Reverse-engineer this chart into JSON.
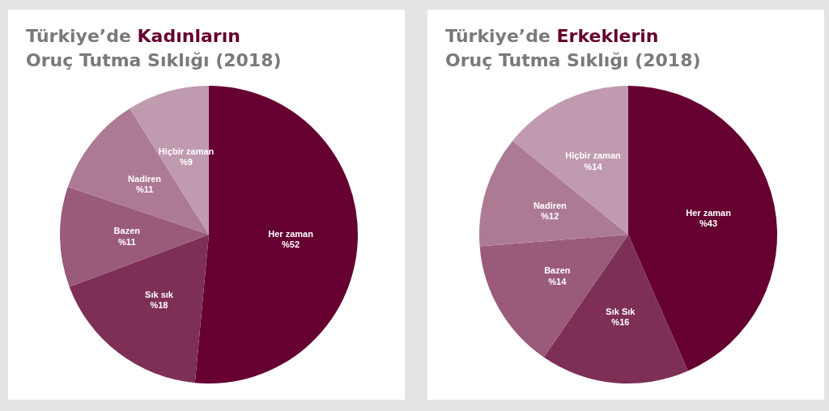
{
  "chart_data": [
    {
      "type": "pie",
      "title": "Türkiye’de Kadınların",
      "subtitle": "Oruç Tutma Sıklığı (2018)",
      "categories": [
        "Her zaman",
        "Sık sık",
        "Bazen",
        "Nadiren",
        "Hiçbir zaman"
      ],
      "values": [
        52,
        18,
        11,
        11,
        9
      ],
      "value_labels": [
        "%52",
        "%18",
        "%11",
        "%11",
        "%9"
      ],
      "colors": [
        "#650030",
        "#7e2f56",
        "#9a5a7a",
        "#ad7a94",
        "#c09aaf"
      ]
    },
    {
      "type": "pie",
      "title": "Türkiye’de Erkeklerin",
      "subtitle": "Oruç Tutma Sıklığı (2018)",
      "categories": [
        "Her zaman",
        "Sık Sık",
        "Bazen",
        "Nadiren",
        "Hiçbir zaman"
      ],
      "values": [
        43,
        16,
        14,
        12,
        14
      ],
      "value_labels": [
        "%43",
        "%16",
        "%14",
        "%12",
        "%14"
      ],
      "colors": [
        "#650030",
        "#7e2f56",
        "#9a5a7a",
        "#ad7a94",
        "#c09aaf"
      ]
    }
  ]
}
